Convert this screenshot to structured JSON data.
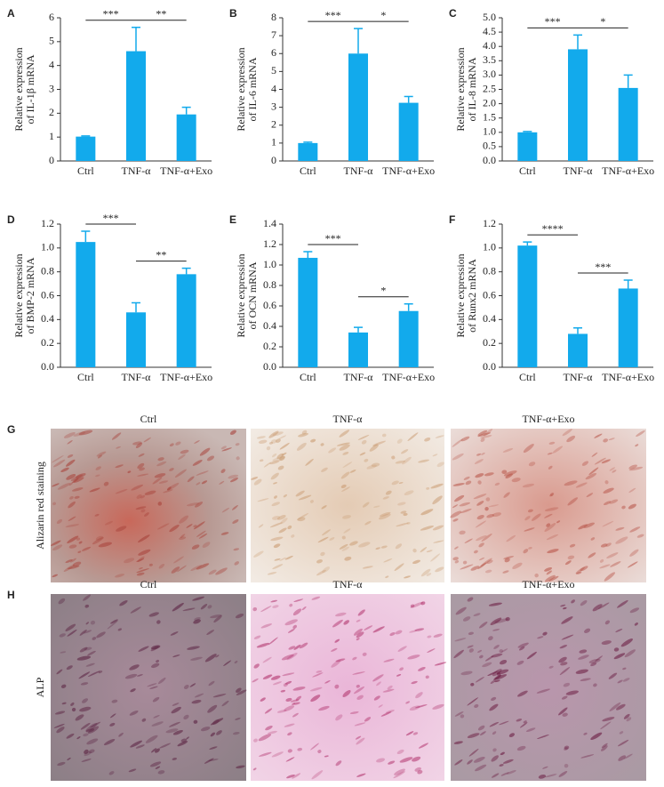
{
  "chart_data": [
    {
      "type": "bar",
      "panel": "A",
      "ylabel": [
        "Relative expression",
        "of IL-1β mRNA"
      ],
      "color": "#12aaec",
      "categories": [
        "Ctrl",
        "TNF-α",
        "TNF-α+Exo"
      ],
      "values": [
        1.02,
        4.6,
        1.95
      ],
      "errors": [
        0.03,
        1.0,
        0.3
      ],
      "ylim": [
        0,
        6
      ],
      "yticks": [
        0,
        1,
        2,
        3,
        4,
        5,
        6
      ],
      "annotations": [
        {
          "text": "***",
          "between": [
            "Ctrl",
            "TNF-α"
          ]
        },
        {
          "text": "**",
          "between": [
            "TNF-α",
            "TNF-α+Exo"
          ]
        }
      ]
    },
    {
      "type": "bar",
      "panel": "B",
      "ylabel": [
        "Relative expression",
        "of IL-6 mRNA"
      ],
      "color": "#12aaec",
      "categories": [
        "Ctrl",
        "TNF-α",
        "TNF-α+Exo"
      ],
      "values": [
        1.0,
        6.0,
        3.25
      ],
      "errors": [
        0.05,
        1.4,
        0.35
      ],
      "ylim": [
        0,
        8
      ],
      "yticks": [
        0,
        1,
        2,
        3,
        4,
        5,
        6,
        7,
        8
      ],
      "annotations": [
        {
          "text": "***",
          "between": [
            "Ctrl",
            "TNF-α"
          ]
        },
        {
          "text": "*",
          "between": [
            "TNF-α",
            "TNF-α+Exo"
          ]
        }
      ]
    },
    {
      "type": "bar",
      "panel": "C",
      "ylabel": [
        "Relative expression",
        "of IL-8 mRNA"
      ],
      "color": "#12aaec",
      "categories": [
        "Ctrl",
        "TNF-α",
        "TNF-α+Exo"
      ],
      "values": [
        1.0,
        3.9,
        2.55
      ],
      "errors": [
        0.03,
        0.5,
        0.45
      ],
      "ylim": [
        0,
        5
      ],
      "yticks": [
        {
          "value": 0,
          "label": "0.0"
        },
        0.5,
        {
          "value": 1,
          "label": "1.0"
        },
        1.5,
        {
          "value": 2,
          "label": "2.0"
        },
        2.5,
        {
          "value": 3,
          "label": "3.0"
        },
        3.5,
        {
          "value": 4,
          "label": "4.0"
        },
        4.5,
        {
          "value": 5,
          "label": "5.0"
        }
      ],
      "annotations": [
        {
          "text": "***",
          "between": [
            "Ctrl",
            "TNF-α"
          ]
        },
        {
          "text": "*",
          "between": [
            "TNF-α",
            "TNF-α+Exo"
          ]
        }
      ]
    },
    {
      "type": "bar",
      "panel": "D",
      "ylabel": [
        "Relative expression",
        "of BMP-2 mRNA"
      ],
      "color": "#12aaec",
      "categories": [
        "Ctrl",
        "TNF-α",
        "TNF-α+Exo"
      ],
      "values": [
        1.05,
        0.46,
        0.78
      ],
      "errors": [
        0.09,
        0.08,
        0.05
      ],
      "ylim": [
        0,
        1.2
      ],
      "yticks": [
        {
          "value": 0,
          "label": "0.0"
        },
        0.2,
        0.4,
        0.6,
        0.8,
        {
          "value": 1,
          "label": "1.0"
        },
        1.2
      ],
      "annotations": [
        {
          "text": "***",
          "between": [
            "Ctrl",
            "TNF-α"
          ]
        },
        {
          "text": "**",
          "between": [
            "TNF-α",
            "TNF-α+Exo"
          ]
        }
      ]
    },
    {
      "type": "bar",
      "panel": "E",
      "ylabel": [
        "Relative expression",
        "of OCN mRNA"
      ],
      "color": "#12aaec",
      "categories": [
        "Ctrl",
        "TNF-α",
        "TNF-α+Exo"
      ],
      "values": [
        1.07,
        0.34,
        0.55
      ],
      "errors": [
        0.06,
        0.05,
        0.07
      ],
      "ylim": [
        0,
        1.4
      ],
      "yticks": [
        {
          "value": 0,
          "label": "0.0"
        },
        0.2,
        0.4,
        0.6,
        0.8,
        {
          "value": 1,
          "label": "1.0"
        },
        1.2,
        1.4
      ],
      "annotations": [
        {
          "text": "***",
          "between": [
            "Ctrl",
            "TNF-α"
          ]
        },
        {
          "text": "*",
          "between": [
            "TNF-α",
            "TNF-α+Exo"
          ]
        }
      ]
    },
    {
      "type": "bar",
      "panel": "F",
      "ylabel": [
        "Relative expression",
        "of Runx2 mRNA"
      ],
      "color": "#12aaec",
      "categories": [
        "Ctrl",
        "TNF-α",
        "TNF-α+Exo"
      ],
      "values": [
        1.02,
        0.28,
        0.66
      ],
      "errors": [
        0.03,
        0.05,
        0.07
      ],
      "ylim": [
        0,
        1.2
      ],
      "yticks": [
        {
          "value": 0,
          "label": "0.0"
        },
        0.2,
        0.4,
        0.6,
        0.8,
        {
          "value": 1,
          "label": "1.0"
        },
        1.2
      ],
      "annotations": [
        {
          "text": "****",
          "between": [
            "Ctrl",
            "TNF-α"
          ]
        },
        {
          "text": "***",
          "between": [
            "TNF-α",
            "TNF-α+Exo"
          ]
        }
      ]
    }
  ],
  "image_panels": [
    {
      "panel": "G",
      "row_label": "Alizarin red staining",
      "columns": [
        "Ctrl",
        "TNF-α",
        "TNF-α+Exo"
      ]
    },
    {
      "panel": "H",
      "row_label": "ALP",
      "columns": [
        "Ctrl",
        "TNF-α",
        "TNF-α+Exo"
      ]
    }
  ]
}
